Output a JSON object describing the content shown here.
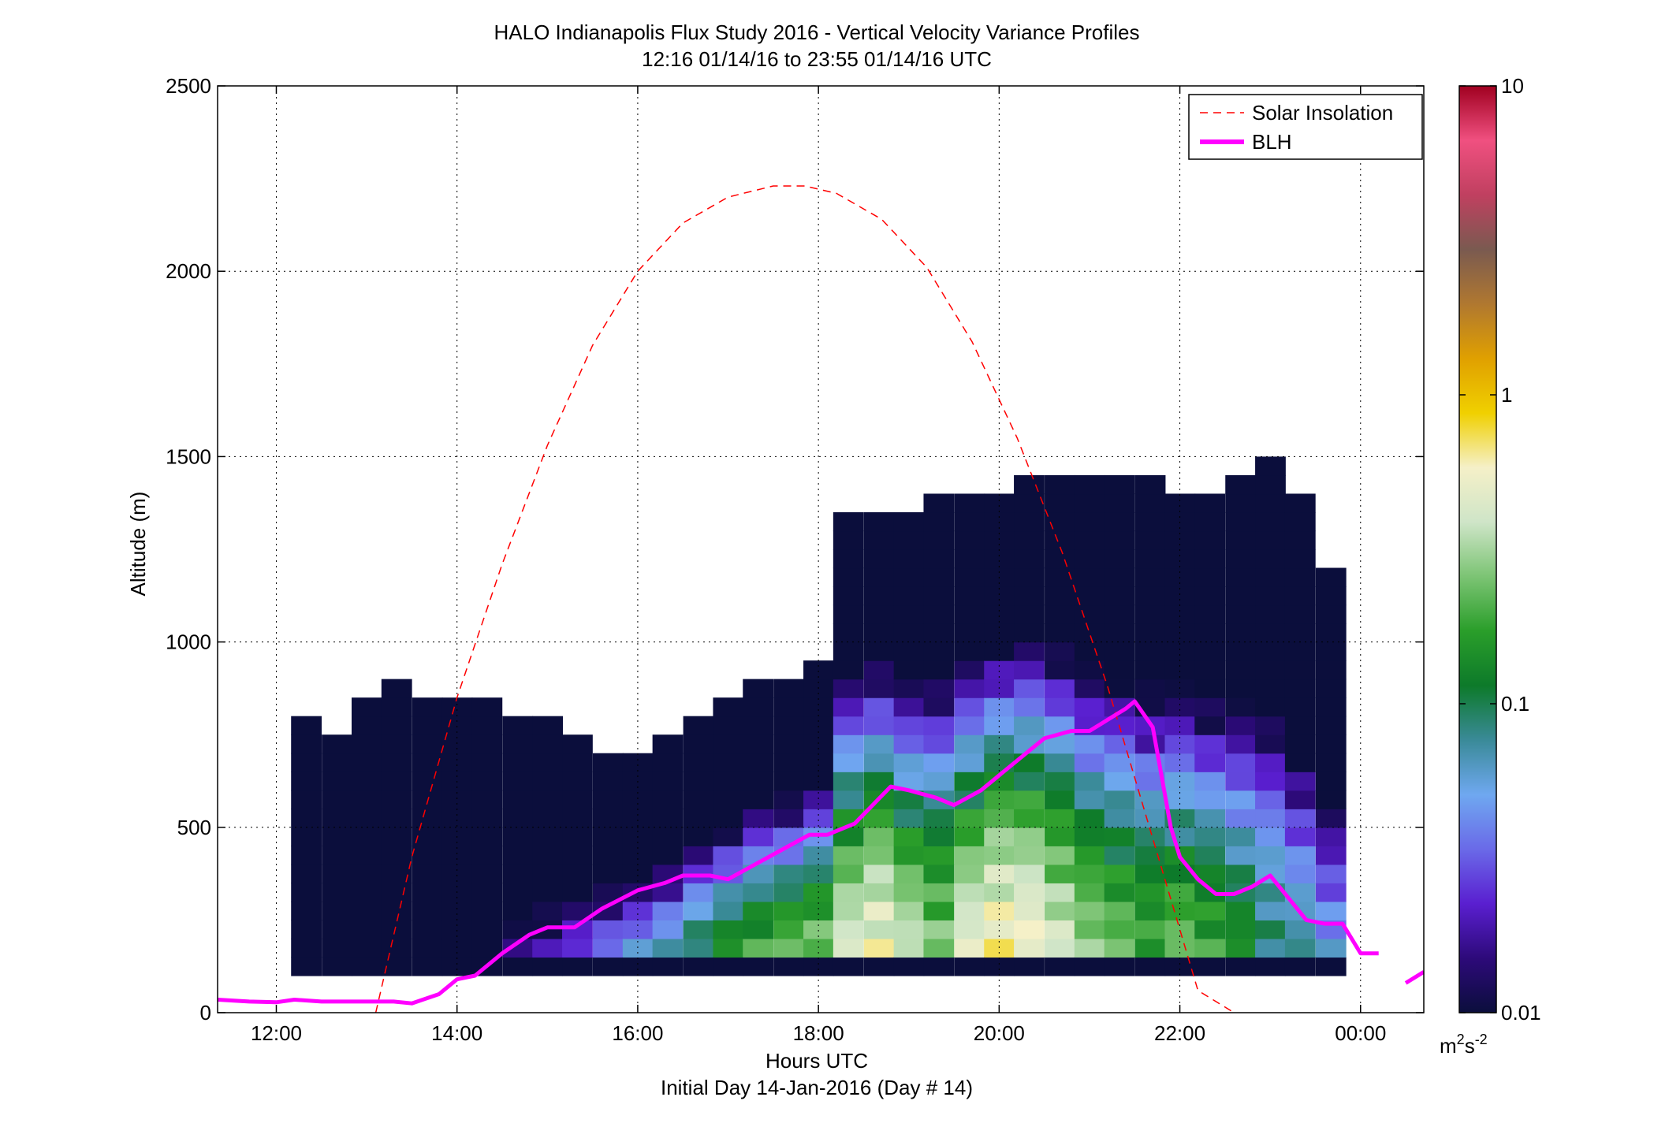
{
  "chart_data": {
    "type": "heatmap",
    "title": "HALO Indianapolis Flux Study 2016 - Vertical Velocity Variance Profiles",
    "subtitle": "12:16 01/14/16 to 23:55 01/14/16  UTC",
    "xlabel": "Hours UTC",
    "xlabel2": "Initial Day 14-Jan-2016 (Day # 14)",
    "ylabel": "Altitude (m)",
    "xlim": [
      11.35,
      24.7
    ],
    "ylim": [
      0,
      2500
    ],
    "x_ticks": [
      12,
      14,
      16,
      18,
      20,
      22,
      24
    ],
    "x_tick_labels": [
      "12:00",
      "14:00",
      "16:00",
      "18:00",
      "20:00",
      "22:00",
      "00:00"
    ],
    "y_ticks": [
      0,
      500,
      1000,
      1500,
      2000,
      2500
    ],
    "y_tick_labels": [
      "0",
      "500",
      "1000",
      "1500",
      "2000",
      "2500"
    ],
    "grid": true,
    "legend_position": "top-right",
    "colorbar": {
      "scale": "log",
      "range": [
        0.01,
        10
      ],
      "ticks": [
        0.01,
        0.1,
        1,
        10
      ],
      "tick_labels": [
        "0.01",
        "0.1",
        "1",
        "10"
      ],
      "unit_base": "m",
      "unit_exp1": "2",
      "unit_mid": "s",
      "unit_exp2": "-2",
      "colors": [
        "#0b0e3c",
        "#2d0a7a",
        "#5a1fd0",
        "#6a6ae8",
        "#6fa8f0",
        "#3a8a98",
        "#0d7a2a",
        "#2a9e2a",
        "#7cc474",
        "#cfe5c8",
        "#f5f0c8",
        "#f0d000",
        "#e0a000",
        "#b07830",
        "#7a5a50",
        "#c04060",
        "#f05080",
        "#a00020"
      ]
    },
    "heatmap": {
      "cell_width_hours": 0.3333,
      "cell_height_m": 50,
      "y_start_m": 100,
      "description_of_values": "vertical velocity variance in m2 s-2 per time-altitude bin",
      "columns": [
        {
          "t": 12.33,
          "top": 800,
          "base": 0.01
        },
        {
          "t": 12.67,
          "top": 750,
          "base": 0.01
        },
        {
          "t": 13.0,
          "top": 850,
          "base": 0.01
        },
        {
          "t": 13.33,
          "top": 900,
          "base": 0.01
        },
        {
          "t": 13.67,
          "top": 850,
          "base": 0.01
        },
        {
          "t": 14.0,
          "top": 850,
          "base": 0.012
        },
        {
          "t": 14.33,
          "top": 850,
          "base": 0.012
        },
        {
          "t": 14.67,
          "top": 800,
          "base": 0.02
        },
        {
          "t": 15.0,
          "top": 800,
          "base": 0.025
        },
        {
          "t": 15.33,
          "top": 750,
          "base": 0.04
        },
        {
          "t": 15.67,
          "top": 700,
          "base": 0.06
        },
        {
          "t": 16.0,
          "top": 700,
          "base": 0.08
        },
        {
          "t": 16.33,
          "top": 750,
          "base": 0.1
        },
        {
          "t": 16.67,
          "top": 800,
          "base": 0.15
        },
        {
          "t": 17.0,
          "top": 850,
          "base": 0.2
        },
        {
          "t": 17.33,
          "top": 900,
          "base": 0.25
        },
        {
          "t": 17.67,
          "top": 900,
          "base": 0.3
        },
        {
          "t": 18.0,
          "top": 950,
          "base": 0.35
        },
        {
          "t": 18.33,
          "top": 1350,
          "base": 0.45
        },
        {
          "t": 18.67,
          "top": 1350,
          "base": 0.6
        },
        {
          "t": 19.0,
          "top": 1350,
          "base": 0.4
        },
        {
          "t": 19.33,
          "top": 1400,
          "base": 0.3
        },
        {
          "t": 19.67,
          "top": 1400,
          "base": 0.5
        },
        {
          "t": 20.0,
          "top": 1400,
          "base": 0.7
        },
        {
          "t": 20.33,
          "top": 1450,
          "base": 0.6
        },
        {
          "t": 20.67,
          "top": 1450,
          "base": 0.45
        },
        {
          "t": 21.0,
          "top": 1450,
          "base": 0.3
        },
        {
          "t": 21.33,
          "top": 1450,
          "base": 0.25
        },
        {
          "t": 21.67,
          "top": 1450,
          "base": 0.2
        },
        {
          "t": 22.0,
          "top": 1400,
          "base": 0.25
        },
        {
          "t": 22.33,
          "top": 1400,
          "base": 0.2
        },
        {
          "t": 22.67,
          "top": 1450,
          "base": 0.15
        },
        {
          "t": 23.0,
          "top": 1500,
          "base": 0.1
        },
        {
          "t": 23.33,
          "top": 1400,
          "base": 0.08
        },
        {
          "t": 23.67,
          "top": 1200,
          "base": 0.06
        }
      ]
    },
    "series": [
      {
        "name": "Solar Insolation",
        "style": "dashed",
        "color": "#ff0000",
        "x": [
          13.1,
          13.5,
          14.0,
          14.5,
          15.0,
          15.5,
          16.0,
          16.5,
          17.0,
          17.5,
          17.85,
          18.2,
          18.7,
          19.2,
          19.7,
          20.2,
          20.7,
          21.2,
          21.7,
          22.2,
          22.6
        ],
        "y": [
          0,
          420,
          850,
          1210,
          1530,
          1800,
          2000,
          2130,
          2200,
          2230,
          2230,
          2210,
          2140,
          2010,
          1810,
          1550,
          1240,
          880,
          470,
          60,
          0
        ]
      },
      {
        "name": "BLH",
        "style": "solid",
        "color": "#ff00ff",
        "x": [
          11.35,
          11.7,
          12.0,
          12.2,
          12.5,
          13.0,
          13.3,
          13.5,
          13.8,
          14.0,
          14.2,
          14.5,
          14.8,
          15.0,
          15.3,
          15.6,
          16.0,
          16.3,
          16.5,
          16.8,
          17.0,
          17.3,
          17.6,
          17.9,
          18.1,
          18.4,
          18.6,
          18.8,
          19.0,
          19.3,
          19.5,
          19.8,
          20.0,
          20.3,
          20.5,
          20.8,
          21.0,
          21.2,
          21.4,
          21.5,
          21.7,
          21.9,
          22.0,
          22.2,
          22.4,
          22.6,
          22.8,
          23.0,
          23.2,
          23.4,
          23.6,
          23.8,
          24.0,
          24.2
        ],
        "y": [
          35,
          30,
          28,
          35,
          30,
          30,
          30,
          25,
          50,
          90,
          100,
          160,
          210,
          230,
          230,
          280,
          330,
          350,
          370,
          370,
          360,
          400,
          440,
          480,
          480,
          510,
          560,
          610,
          600,
          580,
          560,
          600,
          640,
          700,
          740,
          760,
          760,
          790,
          820,
          840,
          770,
          500,
          420,
          360,
          320,
          320,
          340,
          370,
          310,
          250,
          240,
          240,
          160,
          160
        ]
      },
      {
        "name": "BLH_tail",
        "style": "solid",
        "color": "#ff00ff",
        "x": [
          24.5,
          24.7
        ],
        "y": [
          80,
          110
        ]
      }
    ]
  },
  "legend": {
    "items": [
      {
        "label": "Solar Insolation",
        "color": "#ff0000",
        "style": "dashed"
      },
      {
        "label": "BLH",
        "color": "#ff00ff",
        "style": "solid"
      }
    ]
  }
}
